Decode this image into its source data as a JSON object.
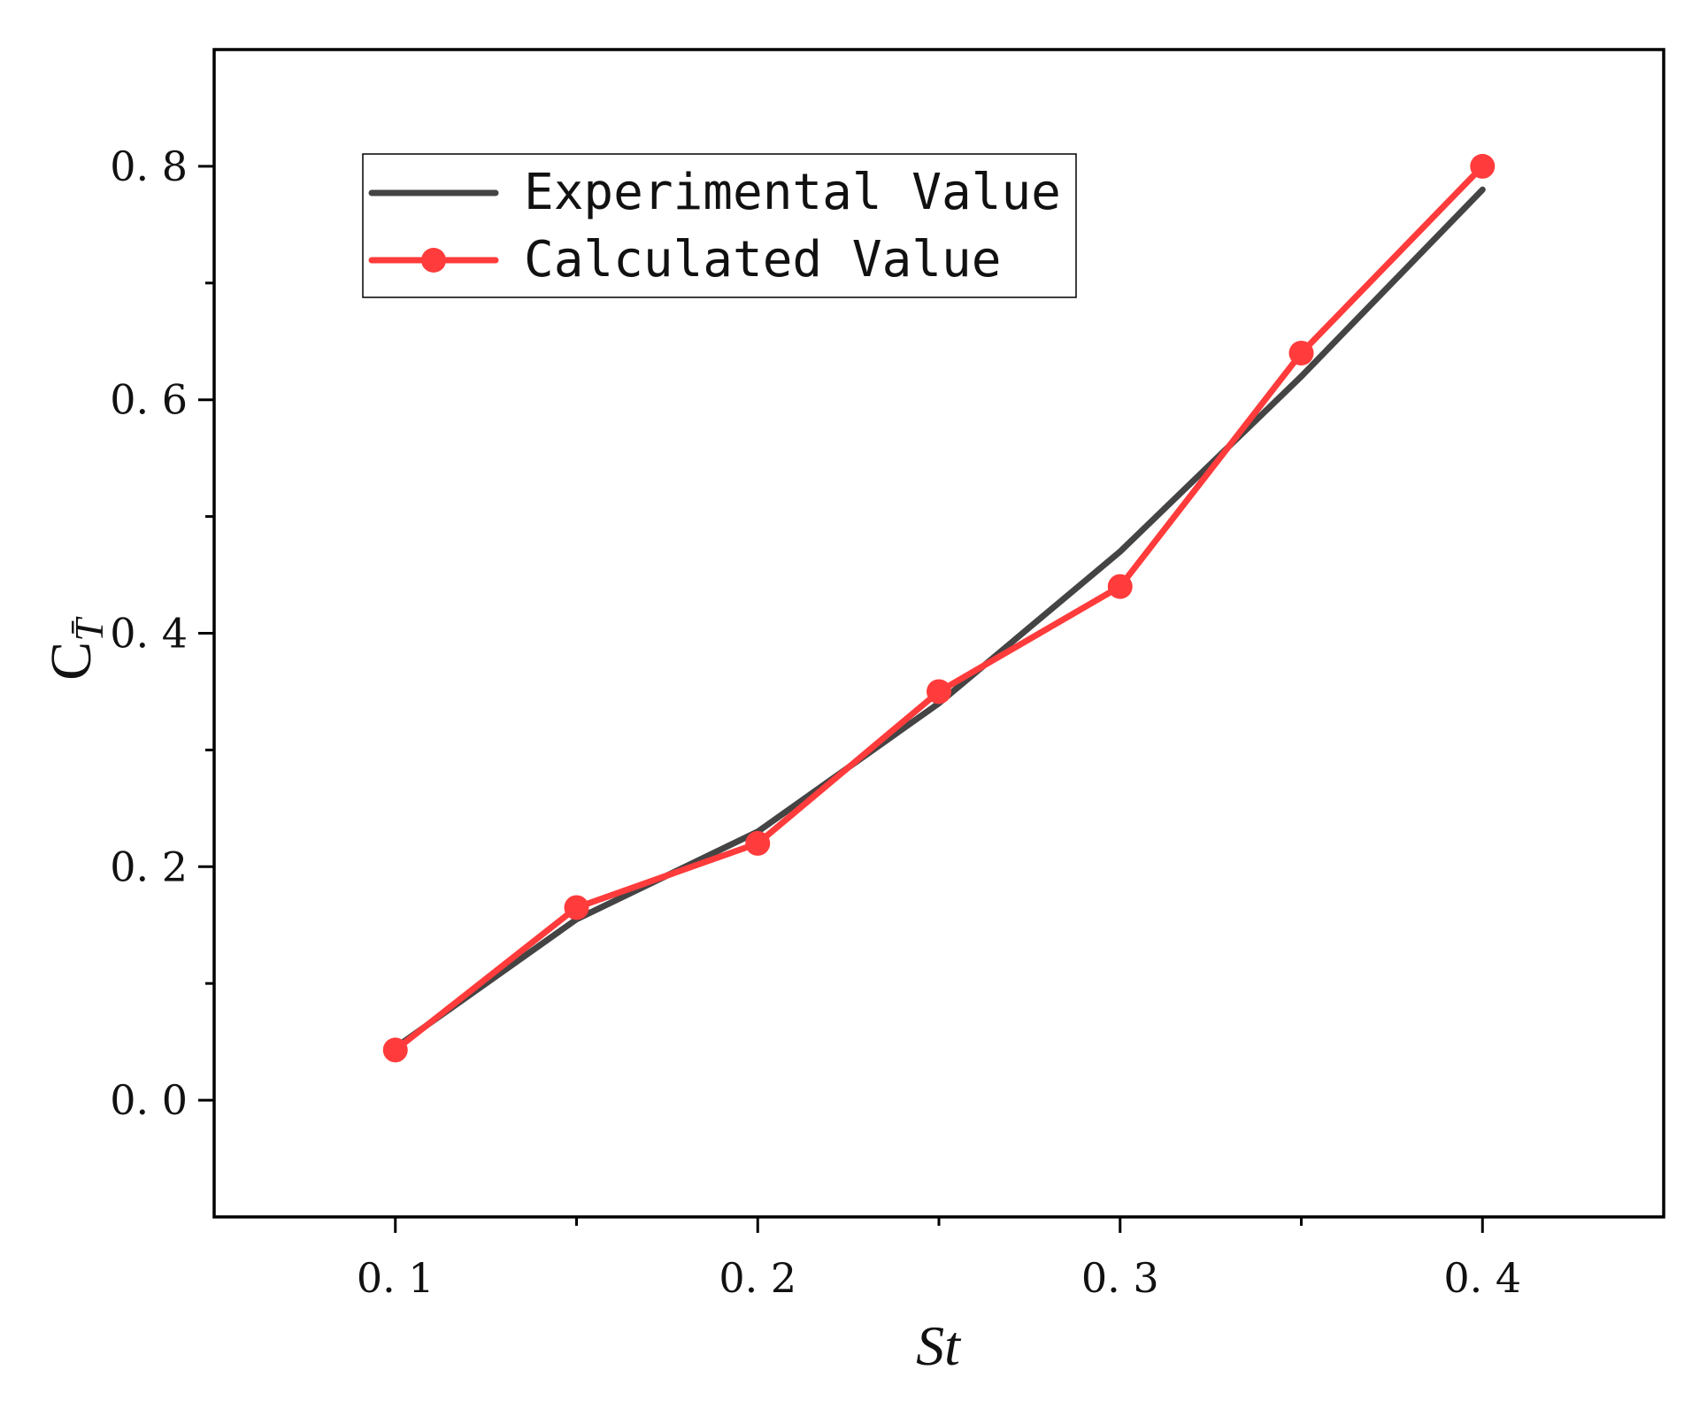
{
  "chart_data": {
    "type": "line",
    "title": "",
    "xlabel": "St",
    "ylabel": {
      "main": "C",
      "sub": "T̄"
    },
    "xlim": [
      0.05,
      0.45
    ],
    "ylim": [
      -0.1,
      0.9
    ],
    "xticks": [
      0.1,
      0.2,
      0.3,
      0.4
    ],
    "xtick_labels": [
      "0. 1",
      "0. 2",
      "0. 3",
      "0. 4"
    ],
    "xminor": [
      0.15,
      0.25,
      0.35
    ],
    "yticks": [
      0.0,
      0.2,
      0.4,
      0.6,
      0.8
    ],
    "ytick_labels": [
      "0. 0",
      "0. 2",
      "0. 4",
      "0. 6",
      "0. 8"
    ],
    "yminor": [
      0.1,
      0.3,
      0.5,
      0.7
    ],
    "grid": false,
    "legend_position": "top-left",
    "series": [
      {
        "name": "Experimental Value",
        "color": "#444444",
        "marker": false,
        "x": [
          0.1,
          0.15,
          0.2,
          0.25,
          0.3,
          0.35,
          0.4
        ],
        "y": [
          0.045,
          0.155,
          0.23,
          0.34,
          0.47,
          0.62,
          0.78
        ]
      },
      {
        "name": "Calculated Value",
        "color": "#ff3b3b",
        "marker": true,
        "x": [
          0.1,
          0.15,
          0.2,
          0.25,
          0.3,
          0.35,
          0.4
        ],
        "y": [
          0.043,
          0.165,
          0.22,
          0.35,
          0.44,
          0.64,
          0.8
        ]
      }
    ]
  }
}
